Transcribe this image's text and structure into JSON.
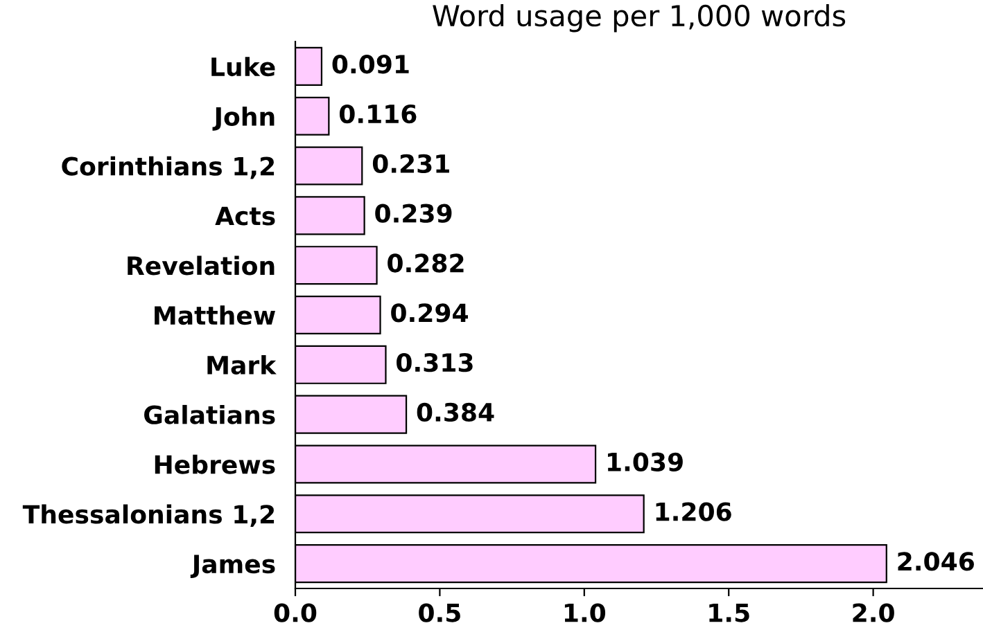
{
  "chart_data": {
    "type": "bar",
    "orientation": "horizontal",
    "title": "Word usage per 1,000 words",
    "categories": [
      "Luke",
      "John",
      "Corinthians 1,2",
      "Acts",
      "Revelation",
      "Matthew",
      "Mark",
      "Galatians",
      "Hebrews",
      "Thessalonians 1,2",
      "James"
    ],
    "values": [
      0.091,
      0.116,
      0.231,
      0.239,
      0.282,
      0.294,
      0.313,
      0.384,
      1.039,
      1.206,
      2.046
    ],
    "color": "#ffccff",
    "data_labels": true,
    "grid": false,
    "legend": false,
    "xlim": [
      0,
      2.38
    ],
    "xticks": [
      {
        "value": 0,
        "label": "0.0"
      },
      {
        "value": 0.5,
        "label": "0.5"
      },
      {
        "value": 1,
        "label": "1.0"
      },
      {
        "value": 1.5,
        "label": "1.5"
      },
      {
        "value": 2,
        "label": "2.0"
      }
    ]
  }
}
